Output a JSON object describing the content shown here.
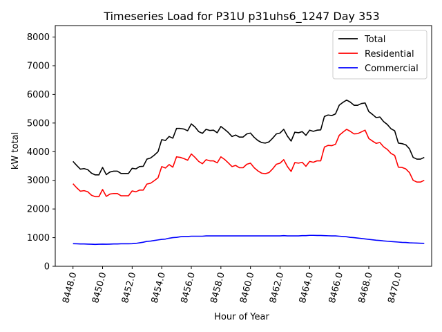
{
  "chart_data": {
    "type": "line",
    "title": "Timeseries Load for P31U p31uhs6_1247  Day 353",
    "xlabel": "Hour of Year",
    "ylabel": "kW total",
    "xlim": [
      8446.8,
      8472.25
    ],
    "ylim": [
      0,
      8400
    ],
    "xticks": [
      8448,
      8450,
      8452,
      8454,
      8456,
      8458,
      8460,
      8462,
      8464,
      8466,
      8468,
      8470
    ],
    "xtick_labels": [
      "8448.0",
      "8450.0",
      "8452.0",
      "8454.0",
      "8456.0",
      "8458.0",
      "8460.0",
      "8462.0",
      "8464.0",
      "8466.0",
      "8468.0",
      "8470.0"
    ],
    "yticks": [
      0,
      1000,
      2000,
      3000,
      4000,
      5000,
      6000,
      7000,
      8000
    ],
    "ytick_labels": [
      "0",
      "1000",
      "2000",
      "3000",
      "4000",
      "5000",
      "6000",
      "7000",
      "8000"
    ],
    "grid": false,
    "legend_position": "top-right",
    "x": [
      8448.0,
      8448.25,
      8448.5,
      8448.75,
      8449.0,
      8449.25,
      8449.5,
      8449.75,
      8450.0,
      8450.25,
      8450.5,
      8450.75,
      8451.0,
      8451.25,
      8451.5,
      8451.75,
      8452.0,
      8452.25,
      8452.5,
      8452.75,
      8453.0,
      8453.25,
      8453.5,
      8453.75,
      8454.0,
      8454.25,
      8454.5,
      8454.75,
      8455.0,
      8455.25,
      8455.5,
      8455.75,
      8456.0,
      8456.25,
      8456.5,
      8456.75,
      8457.0,
      8457.25,
      8457.5,
      8457.75,
      8458.0,
      8458.25,
      8458.5,
      8458.75,
      8459.0,
      8459.25,
      8459.5,
      8459.75,
      8460.0,
      8460.25,
      8460.5,
      8460.75,
      8461.0,
      8461.25,
      8461.5,
      8461.75,
      8462.0,
      8462.25,
      8462.5,
      8462.75,
      8463.0,
      8463.25,
      8463.5,
      8463.75,
      8464.0,
      8464.25,
      8464.5,
      8464.75,
      8465.0,
      8465.25,
      8465.5,
      8465.75,
      8466.0,
      8466.25,
      8466.5,
      8466.75,
      8467.0,
      8467.25,
      8467.5,
      8467.75,
      8468.0,
      8468.25,
      8468.5,
      8468.75,
      8469.0,
      8469.25,
      8469.5,
      8469.75,
      8470.0,
      8470.25,
      8470.5,
      8470.75,
      8471.0,
      8471.25,
      8471.5,
      8471.75
    ],
    "series": [
      {
        "name": "Total",
        "color": "#000000",
        "values": [
          3660,
          3520,
          3390,
          3410,
          3370,
          3250,
          3190,
          3190,
          3450,
          3200,
          3290,
          3320,
          3320,
          3240,
          3240,
          3240,
          3420,
          3400,
          3480,
          3490,
          3740,
          3780,
          3880,
          4000,
          4420,
          4390,
          4530,
          4470,
          4810,
          4810,
          4790,
          4730,
          4970,
          4860,
          4700,
          4640,
          4780,
          4740,
          4750,
          4660,
          4880,
          4780,
          4670,
          4530,
          4580,
          4510,
          4510,
          4620,
          4650,
          4500,
          4390,
          4320,
          4300,
          4340,
          4470,
          4620,
          4650,
          4780,
          4540,
          4370,
          4680,
          4660,
          4700,
          4570,
          4750,
          4710,
          4750,
          4760,
          5230,
          5280,
          5260,
          5320,
          5620,
          5720,
          5800,
          5730,
          5620,
          5620,
          5680,
          5700,
          5400,
          5300,
          5190,
          5210,
          5050,
          4950,
          4800,
          4730,
          4300,
          4280,
          4240,
          4100,
          3800,
          3740,
          3740,
          3800
        ]
      },
      {
        "name": "Residential",
        "color": "#ff0000",
        "values": [
          2880,
          2740,
          2620,
          2640,
          2600,
          2480,
          2430,
          2430,
          2680,
          2440,
          2520,
          2540,
          2540,
          2460,
          2460,
          2460,
          2630,
          2600,
          2660,
          2660,
          2870,
          2900,
          2990,
          3090,
          3480,
          3430,
          3550,
          3460,
          3820,
          3800,
          3760,
          3700,
          3920,
          3800,
          3660,
          3580,
          3720,
          3680,
          3680,
          3610,
          3820,
          3730,
          3610,
          3480,
          3520,
          3440,
          3440,
          3560,
          3600,
          3440,
          3330,
          3250,
          3230,
          3270,
          3400,
          3560,
          3600,
          3720,
          3480,
          3310,
          3620,
          3600,
          3630,
          3490,
          3660,
          3630,
          3680,
          3680,
          4160,
          4220,
          4210,
          4260,
          4570,
          4680,
          4780,
          4710,
          4620,
          4630,
          4690,
          4750,
          4460,
          4370,
          4290,
          4320,
          4170,
          4080,
          3940,
          3870,
          3460,
          3450,
          3400,
          3270,
          3000,
          2940,
          2940,
          3000
        ]
      },
      {
        "name": "Commercial",
        "color": "#0000ff",
        "values": [
          790,
          785,
          780,
          780,
          775,
          770,
          765,
          770,
          775,
          770,
          775,
          780,
          780,
          785,
          785,
          785,
          790,
          800,
          820,
          840,
          870,
          880,
          900,
          920,
          940,
          950,
          980,
          1000,
          1010,
          1030,
          1040,
          1040,
          1050,
          1050,
          1050,
          1050,
          1060,
          1060,
          1060,
          1060,
          1060,
          1060,
          1060,
          1060,
          1060,
          1060,
          1060,
          1060,
          1060,
          1060,
          1060,
          1060,
          1060,
          1060,
          1060,
          1060,
          1060,
          1070,
          1060,
          1060,
          1060,
          1060,
          1070,
          1070,
          1080,
          1080,
          1075,
          1075,
          1070,
          1065,
          1060,
          1060,
          1050,
          1040,
          1030,
          1010,
          1000,
          985,
          970,
          955,
          940,
          925,
          910,
          900,
          885,
          875,
          865,
          855,
          845,
          835,
          830,
          820,
          815,
          810,
          805,
          800
        ]
      }
    ]
  }
}
